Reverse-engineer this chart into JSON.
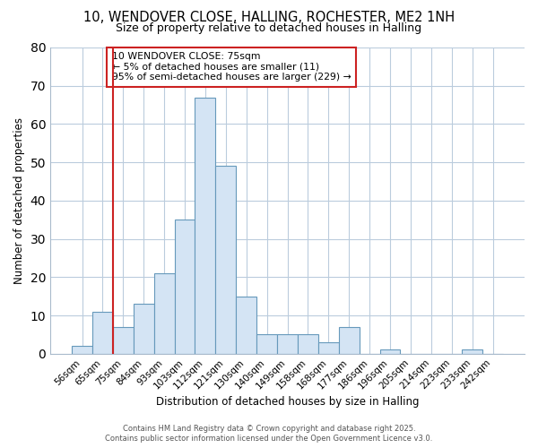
{
  "title_line1": "10, WENDOVER CLOSE, HALLING, ROCHESTER, ME2 1NH",
  "title_line2": "Size of property relative to detached houses in Halling",
  "xlabel": "Distribution of detached houses by size in Halling",
  "ylabel": "Number of detached properties",
  "bar_labels": [
    "56sqm",
    "65sqm",
    "75sqm",
    "84sqm",
    "93sqm",
    "103sqm",
    "112sqm",
    "121sqm",
    "130sqm",
    "140sqm",
    "149sqm",
    "158sqm",
    "168sqm",
    "177sqm",
    "186sqm",
    "196sqm",
    "205sqm",
    "214sqm",
    "223sqm",
    "233sqm",
    "242sqm"
  ],
  "bar_values": [
    2,
    11,
    7,
    13,
    21,
    35,
    67,
    49,
    15,
    5,
    5,
    5,
    3,
    7,
    0,
    1,
    0,
    0,
    0,
    1,
    0
  ],
  "bar_color": "#d4e4f4",
  "bar_edge_color": "#6699bb",
  "property_line_x": 2.5,
  "annotation_title": "10 WENDOVER CLOSE: 75sqm",
  "annotation_line1": "← 5% of detached houses are smaller (11)",
  "annotation_line2": "95% of semi-detached houses are larger (229) →",
  "vline_color": "#cc2222",
  "annotation_box_facecolor": "#ffffff",
  "annotation_box_edge": "#cc2222",
  "background_color": "#ffffff",
  "plot_bg_color": "#ffffff",
  "grid_color": "#bbccdd",
  "ylim": [
    0,
    80
  ],
  "yticks": [
    0,
    10,
    20,
    30,
    40,
    50,
    60,
    70,
    80
  ],
  "footer_line1": "Contains HM Land Registry data © Crown copyright and database right 2025.",
  "footer_line2": "Contains public sector information licensed under the Open Government Licence v3.0."
}
